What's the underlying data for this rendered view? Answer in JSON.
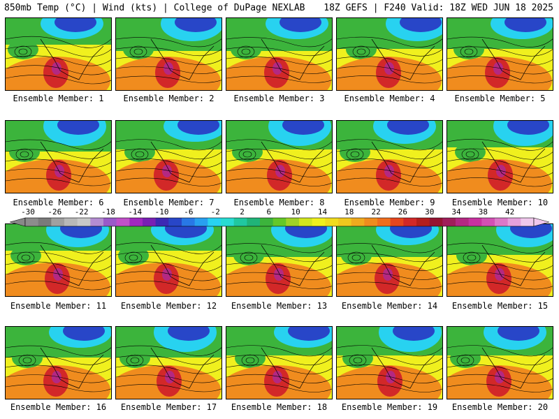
{
  "header": {
    "left": "850mb Temp (°C) | Wind (kts) | College of DuPage NEXLAB",
    "right": "18Z GEFS | F240 Valid: 18Z WED JUN 18 2025"
  },
  "members": [
    "Ensemble Member: 1",
    "Ensemble Member: 2",
    "Ensemble Member: 3",
    "Ensemble Member: 4",
    "Ensemble Member: 5",
    "Ensemble Member: 6",
    "Ensemble Member: 7",
    "Ensemble Member: 8",
    "Ensemble Member: 9",
    "Ensemble Member: 10",
    "Ensemble Member: 11",
    "Ensemble Member: 12",
    "Ensemble Member: 13",
    "Ensemble Member: 14",
    "Ensemble Member: 15",
    "Ensemble Member: 16",
    "Ensemble Member: 17",
    "Ensemble Member: 18",
    "Ensemble Member: 19",
    "Ensemble Member: 20"
  ],
  "colorbar": {
    "tick_labels": [
      "-30",
      "-26",
      "-22",
      "-18",
      "-14",
      "-10",
      "-6",
      "-2",
      "2",
      "6",
      "10",
      "14",
      "18",
      "22",
      "26",
      "30",
      "34",
      "38",
      "42"
    ],
    "colors": [
      "#8c8c8c",
      "#7a7a7a",
      "#a0a0a0",
      "#b8b8b8",
      "#c8c8c8",
      "#b48cd2",
      "#9a5ac8",
      "#c050c8",
      "#a028c0",
      "#7820b4",
      "#3c28b4",
      "#2846c8",
      "#2878e6",
      "#28a0f0",
      "#28d2f0",
      "#28dcd2",
      "#20c8a0",
      "#20b478",
      "#3cb43c",
      "#64c828",
      "#a0d228",
      "#d2e61e",
      "#f0f01e",
      "#f0dc1e",
      "#f0c81e",
      "#f0aa1e",
      "#f08c1e",
      "#f06e1e",
      "#e6461e",
      "#d22828",
      "#b41e1e",
      "#961432",
      "#a01e5a",
      "#b42882",
      "#c832a0",
      "#d250b4",
      "#dc78c8",
      "#e6a0dc",
      "#f0c8ec"
    ]
  },
  "palette": {
    "cold": "#2846c8",
    "cool": "#28d2f0",
    "mild": "#3cb43c",
    "warm": "#f0f01e",
    "hot": "#f08c1e",
    "veryhot": "#d22828",
    "extreme": "#b42882"
  }
}
